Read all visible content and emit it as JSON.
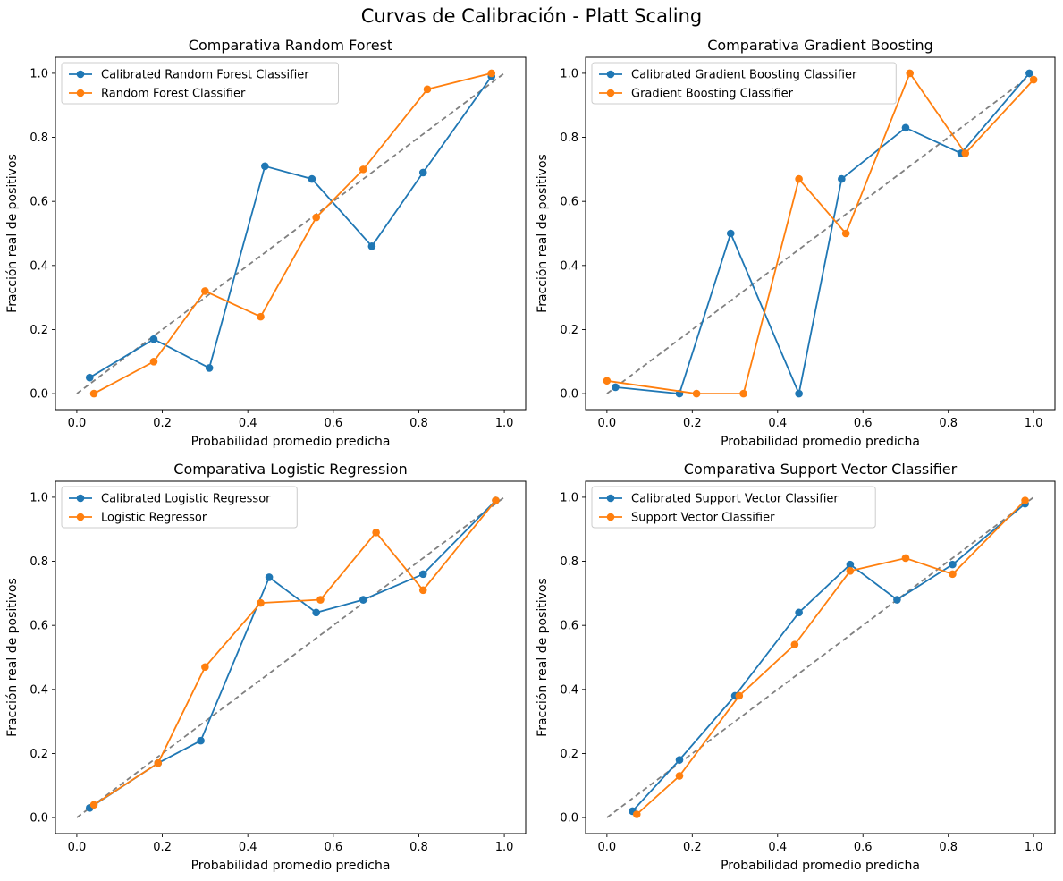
{
  "figure": {
    "title": "Curvas de Calibración - Platt Scaling"
  },
  "chart_data": [
    {
      "type": "line",
      "title": "Comparativa Random Forest",
      "xlabel": "Probabilidad promedio predicha",
      "ylabel": "Fracción real de positivos",
      "xlim": [
        -0.05,
        1.05
      ],
      "ylim": [
        -0.05,
        1.05
      ],
      "x_ticks": [
        "0.0",
        "0.2",
        "0.4",
        "0.6",
        "0.8",
        "1.0"
      ],
      "y_ticks": [
        "0.0",
        "0.2",
        "0.4",
        "0.6",
        "0.8",
        "1.0"
      ],
      "grid": false,
      "legend": "upper-left",
      "reference_line": {
        "x": [
          0,
          1
        ],
        "y": [
          0,
          1
        ],
        "style": "dashed",
        "color": "#808080"
      },
      "series": [
        {
          "name": "Calibrated Random Forest Classifier",
          "color": "#1f77b4",
          "x": [
            0.03,
            0.18,
            0.31,
            0.44,
            0.55,
            0.69,
            0.81,
            0.97
          ],
          "y": [
            0.05,
            0.17,
            0.08,
            0.71,
            0.67,
            0.46,
            0.69,
            0.99
          ]
        },
        {
          "name": "Random Forest Classifier",
          "color": "#ff7f0e",
          "x": [
            0.04,
            0.18,
            0.3,
            0.43,
            0.56,
            0.67,
            0.82,
            0.97
          ],
          "y": [
            0.0,
            0.1,
            0.32,
            0.24,
            0.55,
            0.7,
            0.95,
            1.0
          ]
        }
      ]
    },
    {
      "type": "line",
      "title": "Comparativa Gradient Boosting",
      "xlabel": "Probabilidad promedio predicha",
      "ylabel": "Fracción real de positivos",
      "xlim": [
        -0.05,
        1.05
      ],
      "ylim": [
        -0.05,
        1.05
      ],
      "x_ticks": [
        "0.0",
        "0.2",
        "0.4",
        "0.6",
        "0.8",
        "1.0"
      ],
      "y_ticks": [
        "0.0",
        "0.2",
        "0.4",
        "0.6",
        "0.8",
        "1.0"
      ],
      "grid": false,
      "legend": "upper-left",
      "reference_line": {
        "x": [
          0,
          1
        ],
        "y": [
          0,
          1
        ],
        "style": "dashed",
        "color": "#808080"
      },
      "series": [
        {
          "name": "Calibrated Gradient Boosting Classifier",
          "color": "#1f77b4",
          "x": [
            0.02,
            0.17,
            0.29,
            0.45,
            0.55,
            0.7,
            0.83,
            0.99
          ],
          "y": [
            0.02,
            0.0,
            0.5,
            0.0,
            0.67,
            0.83,
            0.75,
            1.0
          ]
        },
        {
          "name": "Gradient Boosting Classifier",
          "color": "#ff7f0e",
          "x": [
            0.0,
            0.21,
            0.32,
            0.45,
            0.56,
            0.71,
            0.84,
            1.0
          ],
          "y": [
            0.04,
            0.0,
            0.0,
            0.67,
            0.5,
            1.0,
            0.75,
            0.98
          ]
        }
      ]
    },
    {
      "type": "line",
      "title": "Comparativa Logistic Regression",
      "xlabel": "Probabilidad promedio predicha",
      "ylabel": "Fracción real de positivos",
      "xlim": [
        -0.05,
        1.05
      ],
      "ylim": [
        -0.05,
        1.05
      ],
      "x_ticks": [
        "0.0",
        "0.2",
        "0.4",
        "0.6",
        "0.8",
        "1.0"
      ],
      "y_ticks": [
        "0.0",
        "0.2",
        "0.4",
        "0.6",
        "0.8",
        "1.0"
      ],
      "grid": false,
      "legend": "upper-left",
      "reference_line": {
        "x": [
          0,
          1
        ],
        "y": [
          0,
          1
        ],
        "style": "dashed",
        "color": "#808080"
      },
      "series": [
        {
          "name": "Calibrated Logistic Regressor",
          "color": "#1f77b4",
          "x": [
            0.03,
            0.19,
            0.29,
            0.45,
            0.56,
            0.67,
            0.81,
            0.98
          ],
          "y": [
            0.03,
            0.17,
            0.24,
            0.75,
            0.64,
            0.68,
            0.76,
            0.99
          ]
        },
        {
          "name": "Logistic Regressor",
          "color": "#ff7f0e",
          "x": [
            0.04,
            0.19,
            0.3,
            0.43,
            0.57,
            0.7,
            0.81,
            0.98
          ],
          "y": [
            0.04,
            0.17,
            0.47,
            0.67,
            0.68,
            0.89,
            0.71,
            0.99
          ]
        }
      ]
    },
    {
      "type": "line",
      "title": "Comparativa Support Vector Classifier",
      "xlabel": "Probabilidad promedio predicha",
      "ylabel": "Fracción real de positivos",
      "xlim": [
        -0.05,
        1.05
      ],
      "ylim": [
        -0.05,
        1.05
      ],
      "x_ticks": [
        "0.0",
        "0.2",
        "0.4",
        "0.6",
        "0.8",
        "1.0"
      ],
      "y_ticks": [
        "0.0",
        "0.2",
        "0.4",
        "0.6",
        "0.8",
        "1.0"
      ],
      "grid": false,
      "legend": "upper-left",
      "reference_line": {
        "x": [
          0,
          1
        ],
        "y": [
          0,
          1
        ],
        "style": "dashed",
        "color": "#808080"
      },
      "series": [
        {
          "name": "Calibrated Support Vector Classifier",
          "color": "#1f77b4",
          "x": [
            0.06,
            0.17,
            0.3,
            0.45,
            0.57,
            0.68,
            0.81,
            0.98
          ],
          "y": [
            0.02,
            0.18,
            0.38,
            0.64,
            0.79,
            0.68,
            0.79,
            0.98
          ]
        },
        {
          "name": "Support Vector Classifier",
          "color": "#ff7f0e",
          "x": [
            0.07,
            0.17,
            0.31,
            0.44,
            0.57,
            0.7,
            0.81,
            0.98
          ],
          "y": [
            0.01,
            0.13,
            0.38,
            0.54,
            0.77,
            0.81,
            0.76,
            0.99
          ]
        }
      ]
    }
  ]
}
